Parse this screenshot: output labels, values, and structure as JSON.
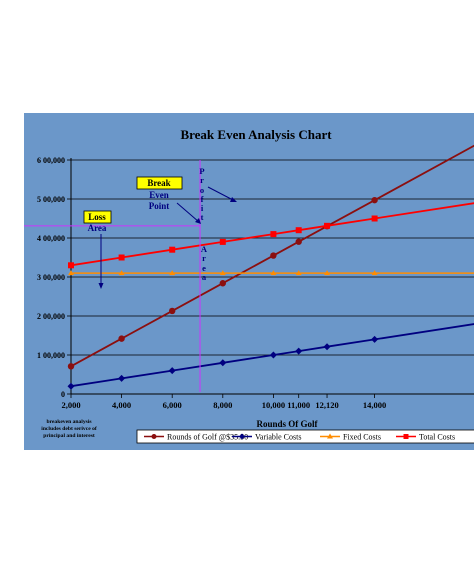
{
  "chart_data": {
    "type": "line",
    "title": "Break Even Analysis Chart",
    "xlabel": "Rounds Of Golf",
    "ylabel": "",
    "x": [
      2000,
      4000,
      6000,
      8000,
      10000,
      11000,
      12120,
      14000
    ],
    "x_tick_labels": [
      "2,000",
      "4,000",
      "6,000",
      "8,000",
      "10,000",
      "11,000",
      "12,120",
      "14,000"
    ],
    "ylim": [
      0,
      600000
    ],
    "y_ticks": [
      0,
      100000,
      200000,
      300000,
      400000,
      500000,
      600000
    ],
    "y_tick_labels": [
      "0",
      "1 00,000",
      "2 00,000",
      "3 00,000",
      "4 00,000",
      "5 00,000",
      "6 00,000"
    ],
    "grid": true,
    "legend": "bottom",
    "series": [
      {
        "name": "Rounds of Golf @$35.50",
        "color": "#8b0f0f",
        "marker": "circle",
        "values": [
          71000,
          142000,
          213000,
          284000,
          355000,
          390500,
          430260,
          497000
        ]
      },
      {
        "name": "Variable Costs",
        "color": "#000080",
        "marker": "diamond",
        "values": [
          20000,
          40000,
          60000,
          80000,
          100000,
          110000,
          121200,
          140000
        ]
      },
      {
        "name": "Fixed Costs",
        "color": "#ff8c00",
        "marker": "triangle",
        "values": [
          310000,
          310000,
          310000,
          310000,
          310000,
          310000,
          310000,
          310000
        ]
      },
      {
        "name": "Total Costs",
        "color": "#ff0000",
        "marker": "square",
        "values": [
          330000,
          350000,
          370000,
          390000,
          410000,
          420000,
          431200,
          450000
        ]
      }
    ],
    "annotations": {
      "break_even_label": [
        "Break",
        "Even",
        "Point"
      ],
      "loss_label": [
        "Loss",
        "Area"
      ],
      "profit_label": [
        "P",
        "r",
        "o",
        "f",
        "i",
        "t",
        "A",
        "r",
        "e",
        "a"
      ],
      "footnote": [
        "breakeven analysis",
        "includes debt serivce of",
        "principal and interest"
      ]
    }
  }
}
